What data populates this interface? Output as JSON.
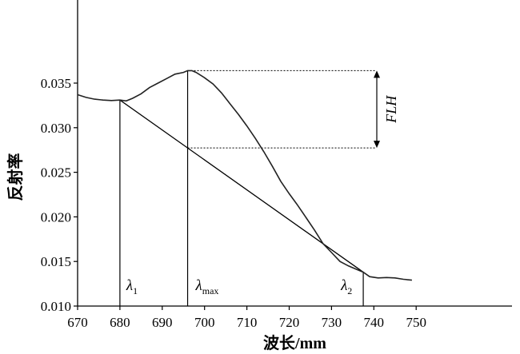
{
  "chart_data": {
    "type": "line",
    "xlabel": "波长/mm",
    "ylabel": "反射率",
    "xlim": [
      670,
      750
    ],
    "ylim": [
      0.01,
      0.0365
    ],
    "xticks": [
      670,
      680,
      690,
      700,
      710,
      720,
      730,
      740,
      750
    ],
    "yticks": [
      "0.010",
      "0.015",
      "0.020",
      "0.025",
      "0.030",
      "0.035"
    ],
    "grid": false,
    "series": [
      {
        "x": [
          670,
          672,
          674,
          676,
          678,
          680,
          681.5,
          683,
          685,
          687,
          689,
          691,
          693,
          695,
          696,
          697,
          698,
          700,
          702,
          704,
          706,
          708,
          710,
          712,
          714,
          716,
          718,
          720,
          722,
          724,
          726,
          728,
          730,
          732,
          734,
          736,
          737.5,
          739,
          741,
          743,
          745,
          747,
          749
        ],
        "y": [
          0.0337,
          0.0334,
          0.0332,
          0.0331,
          0.03305,
          0.0331,
          0.033,
          0.0333,
          0.0338,
          0.0345,
          0.035,
          0.0355,
          0.036,
          0.0362,
          0.0364,
          0.0364,
          0.0362,
          0.0356,
          0.0349,
          0.0339,
          0.0327,
          0.0315,
          0.0302,
          0.0288,
          0.0273,
          0.0257,
          0.024,
          0.0226,
          0.0213,
          0.0199,
          0.0185,
          0.017,
          0.016,
          0.015,
          0.0145,
          0.0141,
          0.0138,
          0.0133,
          0.01315,
          0.0132,
          0.01315,
          0.013,
          0.0129
        ]
      }
    ],
    "annotations": {
      "lambda1": {
        "symbol": "λ",
        "sub": "1",
        "x": 680,
        "y": 0.0331
      },
      "lambda_max": {
        "symbol": "λ",
        "sub": "max",
        "x": 696,
        "y": 0.0364
      },
      "lambda2": {
        "symbol": "λ",
        "sub": "2",
        "x": 737.5,
        "y": 0.0138
      },
      "flh_label": "FLH"
    }
  }
}
